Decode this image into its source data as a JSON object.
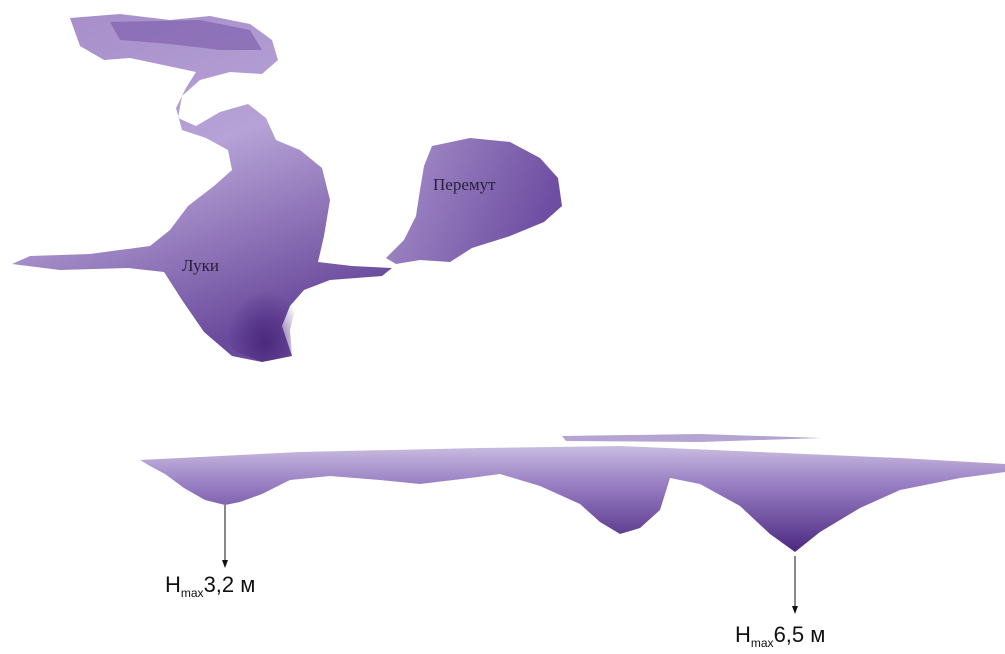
{
  "lakes": [
    {
      "label": "Луки"
    },
    {
      "label": "Перемут"
    }
  ],
  "depth_labels": [
    {
      "symbol": "H",
      "subscript": "max",
      "value": "3,2 м"
    },
    {
      "symbol": "H",
      "subscript": "max",
      "value": "6,5 м"
    }
  ]
}
